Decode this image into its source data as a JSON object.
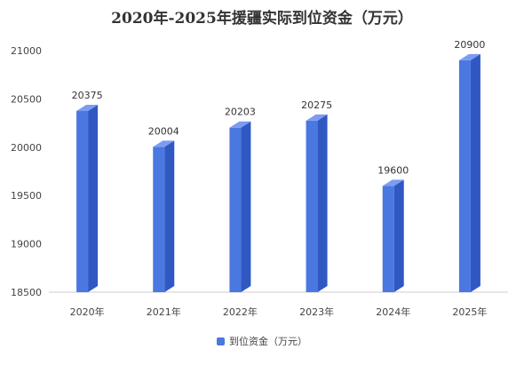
{
  "chart_data": {
    "type": "bar",
    "title": "2020年-2025年援疆实际到位资金（万元）",
    "categories": [
      "2020年",
      "2021年",
      "2022年",
      "2023年",
      "2024年",
      "2025年"
    ],
    "series": [
      {
        "name": "到位资金（万元）",
        "values": [
          20375,
          20004,
          20203,
          20275,
          19600,
          20900
        ]
      }
    ],
    "data_labels": [
      "20375",
      "20004",
      "20203",
      "20275",
      "19600",
      "20900"
    ],
    "ylim": [
      18500,
      21000
    ],
    "yticks": [
      18500,
      19000,
      19500,
      20000,
      20500,
      21000
    ],
    "ytick_labels": [
      "18500",
      "19000",
      "19500",
      "20000",
      "20500",
      "21000"
    ],
    "xlabel": "",
    "ylabel": "",
    "grid": false,
    "legend_position": "bottom",
    "colors": {
      "bar_front": "#4a78e0",
      "bar_side": "#2f58c2",
      "bar_top": "#7b9cf0",
      "axis": "#cccccc"
    }
  }
}
